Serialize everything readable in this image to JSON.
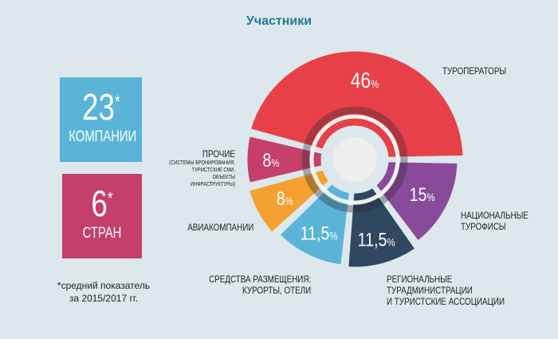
{
  "title": "Участники",
  "stats": {
    "companies": {
      "value": "23",
      "asterisk": "*",
      "label": "КОМПАНИИ",
      "color": "#5ab4d8"
    },
    "countries": {
      "value": "6",
      "asterisk": "*",
      "label": "СТРАН",
      "color": "#c43f6a"
    },
    "footnote_line1": "*средний показатель",
    "footnote_line2": "за 2015/2017 гг."
  },
  "chart_data": {
    "type": "pie",
    "title": "Участники",
    "unit": "%",
    "slices": [
      {
        "label": "ТУРОПЕРАТОРЫ",
        "value": 46,
        "display": "46",
        "color": "#e84048"
      },
      {
        "label": "ПРОЧИЕ",
        "sublabel": [
          "(СИСТЕМЫ БРОНИРОВАНИЯ,",
          "ТУРИСТСКИЕ СМИ,",
          "ОБЪЕКТЫ",
          "ИНФРАСТРУКТУРЫ)"
        ],
        "value": 8,
        "display": "8",
        "color": "#c43f6a"
      },
      {
        "label": "АВИАКОМПАНИИ",
        "value": 8,
        "display": "8",
        "color": "#f4a132"
      },
      {
        "label": [
          "СРЕДСТВА РАЗМЕЩЕНИЯ:",
          "КУРОРТЫ, ОТЕЛИ"
        ],
        "value": 11.5,
        "display": "11,5",
        "color": "#5ab4d8"
      },
      {
        "label": [
          "РЕГИОНАЛЬНЫЕ",
          "ТУРАДМИНИСТРАЦИИ",
          "И ТУРИСТСКИЕ АССОЦИАЦИИ"
        ],
        "value": 11.5,
        "display": "11,5",
        "color": "#2f4860"
      },
      {
        "label": [
          "НАЦИОНАЛЬНЫЕ",
          "ТУРОФИСЫ"
        ],
        "value": 15,
        "display": "15",
        "color": "#8a4a9a"
      }
    ]
  }
}
